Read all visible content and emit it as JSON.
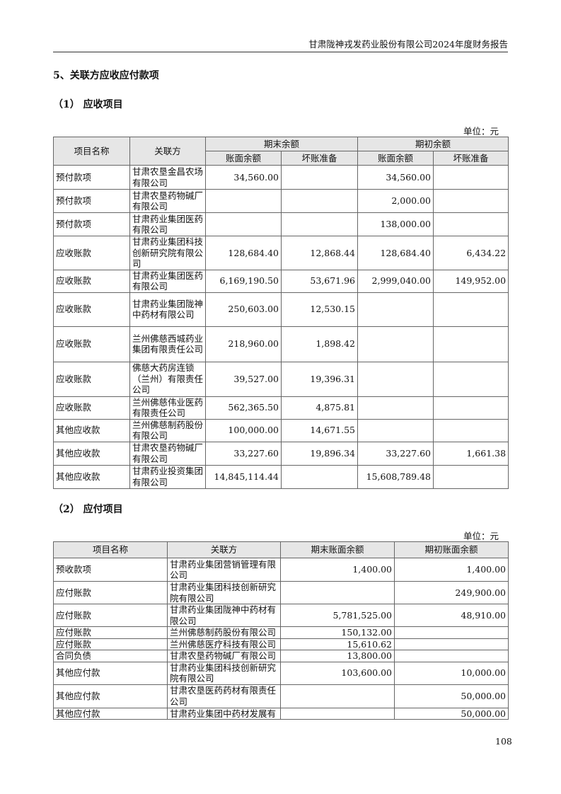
{
  "header": {
    "title": "甘肃陇神戎发药业股份有限公司2024年度财务报告"
  },
  "section": {
    "title": "5、关联方应收应付款项"
  },
  "receivable": {
    "title": "（1） 应收项目",
    "unit": "单位：元",
    "headers": {
      "item": "项目名称",
      "party": "关联方",
      "end": "期末余额",
      "begin": "期初余额",
      "book": "账面余额",
      "bad": "坏账准备"
    },
    "rows": [
      {
        "item": "预付款项",
        "party": "甘肃农垦金昌农场有限公司",
        "end_book": "34,560.00",
        "end_bad": "",
        "begin_book": "34,560.00",
        "begin_bad": ""
      },
      {
        "item": "预付款项",
        "party": "甘肃农垦药物碱厂有限公司",
        "end_book": "",
        "end_bad": "",
        "begin_book": "2,000.00",
        "begin_bad": ""
      },
      {
        "item": "预付款项",
        "party": "甘肃药业集团医药有限公司",
        "end_book": "",
        "end_bad": "",
        "begin_book": "138,000.00",
        "begin_bad": ""
      },
      {
        "item": "应收账款",
        "party": "甘肃药业集团科技创新研究院有限公司",
        "end_book": "128,684.40",
        "end_bad": "12,868.44",
        "begin_book": "128,684.40",
        "begin_bad": "6,434.22"
      },
      {
        "item": "应收账款",
        "party": "甘肃药业集团医药有限公司",
        "end_book": "6,169,190.50",
        "end_bad": "53,671.96",
        "begin_book": "2,999,040.00",
        "begin_bad": "149,952.00"
      },
      {
        "item": "应收账款",
        "party": "甘肃药业集团陇神中药材有限公司",
        "end_book": "250,603.00",
        "end_bad": "12,530.15",
        "begin_book": "",
        "begin_bad": ""
      },
      {
        "item": "应收账款",
        "party": "兰州佛慈西城药业集团有限责任公司",
        "end_book": "218,960.00",
        "end_bad": "1,898.42",
        "begin_book": "",
        "begin_bad": ""
      },
      {
        "item": "应收账款",
        "party": "佛慈大药房连锁（兰州）有限责任公司",
        "end_book": "39,527.00",
        "end_bad": "19,396.31",
        "begin_book": "",
        "begin_bad": ""
      },
      {
        "item": "应收账款",
        "party": "兰州佛慈伟业医药有限责任公司",
        "end_book": "562,365.50",
        "end_bad": "4,875.81",
        "begin_book": "",
        "begin_bad": ""
      },
      {
        "item": "其他应收款",
        "party": "兰州佛慈制药股份有限公司",
        "end_book": "100,000.00",
        "end_bad": "14,671.55",
        "begin_book": "",
        "begin_bad": ""
      },
      {
        "item": "其他应收款",
        "party": "甘肃农垦药物碱厂有限公司",
        "end_book": "33,227.60",
        "end_bad": "19,896.34",
        "begin_book": "33,227.60",
        "begin_bad": "1,661.38"
      },
      {
        "item": "其他应收款",
        "party": "甘肃药业投资集团有限公司",
        "end_book": "14,845,114.44",
        "end_bad": "",
        "begin_book": "15,608,789.48",
        "begin_bad": ""
      }
    ]
  },
  "payable": {
    "title": "（2） 应付项目",
    "unit": "单位：元",
    "headers": {
      "item": "项目名称",
      "party": "关联方",
      "end": "期末账面余额",
      "begin": "期初账面余额"
    },
    "rows": [
      {
        "item": "预收款项",
        "party": "甘肃药业集团营销管理有限公司",
        "end": "1,400.00",
        "begin": "1,400.00"
      },
      {
        "item": "应付账款",
        "party": "甘肃药业集团科技创新研究院有限公司",
        "end": "",
        "begin": "249,900.00"
      },
      {
        "item": "应付账款",
        "party": "甘肃药业集团陇神中药材有限公司",
        "end": "5,781,525.00",
        "begin": "48,910.00"
      },
      {
        "item": "应付账款",
        "party": "兰州佛慈制药股份有限公司",
        "end": "150,132.00",
        "begin": ""
      },
      {
        "item": "应付账款",
        "party": "兰州佛慈医疗科技有限公司",
        "end": "15,610.62",
        "begin": ""
      },
      {
        "item": "合同负债",
        "party": "甘肃农垦药物碱厂有限公司",
        "end": "13,800.00",
        "begin": ""
      },
      {
        "item": "其他应付款",
        "party": "甘肃药业集团科技创新研究院有限公司",
        "end": "103,600.00",
        "begin": "10,000.00"
      },
      {
        "item": "其他应付款",
        "party": "甘肃农垦医药药材有限责任公司",
        "end": "",
        "begin": "50,000.00"
      },
      {
        "item": "其他应付款",
        "party": "甘肃药业集团中药材发展有",
        "end": "",
        "begin": "50,000.00"
      }
    ]
  },
  "page_number": "108"
}
